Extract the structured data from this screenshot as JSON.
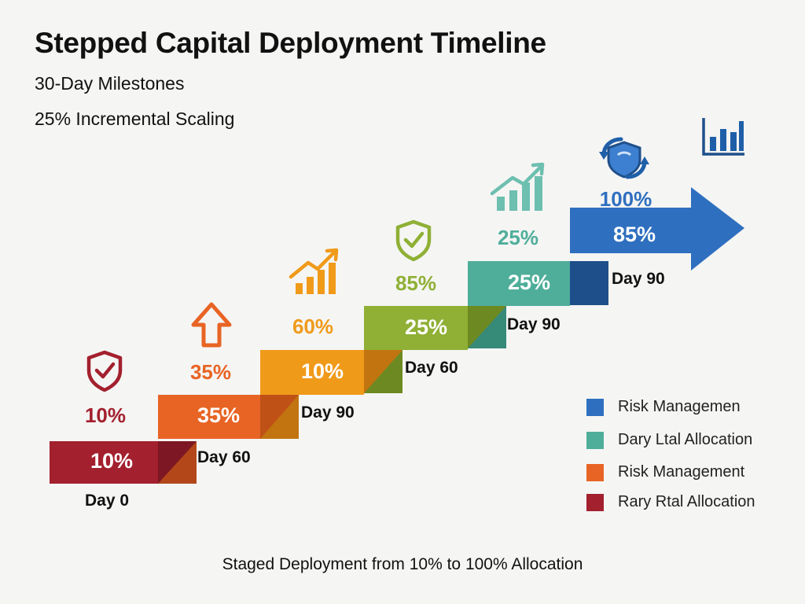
{
  "title": "Stepped Capital Deployment Timeline",
  "subtitle_1": "30-Day Milestones",
  "subtitle_2": "25% Incremental Scaling",
  "steps": [
    {
      "inner": "10%",
      "outer": "10%",
      "day": "Day 0",
      "color": "#a3202e",
      "icon": "shield-check-icon"
    },
    {
      "inner": "35%",
      "outer": "35%",
      "day": "Day 60",
      "color": "#e86424",
      "icon": "up-arrow-icon"
    },
    {
      "inner": "10%",
      "outer": "60%",
      "day": "Day 90",
      "color": "#f09a1a",
      "icon": "growth-chart-icon"
    },
    {
      "inner": "25%",
      "outer": "85%",
      "day": "Day 60",
      "color": "#8fb035",
      "icon": "shield-check-icon"
    },
    {
      "inner": "25%",
      "outer": "25%",
      "day": "Day 90",
      "color": "#4fae9a",
      "icon": "growth-chart-icon"
    },
    {
      "inner": "85%",
      "outer": "100%",
      "day": "Day 90",
      "color": "#2f6fbf",
      "icon": "shield-refresh-icon"
    }
  ],
  "legend": [
    {
      "label": "Risk Managemen",
      "color": "#2f6fbf"
    },
    {
      "label": "Dary Ltal Allocation",
      "color": "#4fae9a"
    },
    {
      "label": "Risk Management",
      "color": "#e86424"
    },
    {
      "label": "Rary Rtal Allocation",
      "color": "#a3202e"
    }
  ],
  "footer": "Staged Deployment from 10% to 100% Allocation"
}
